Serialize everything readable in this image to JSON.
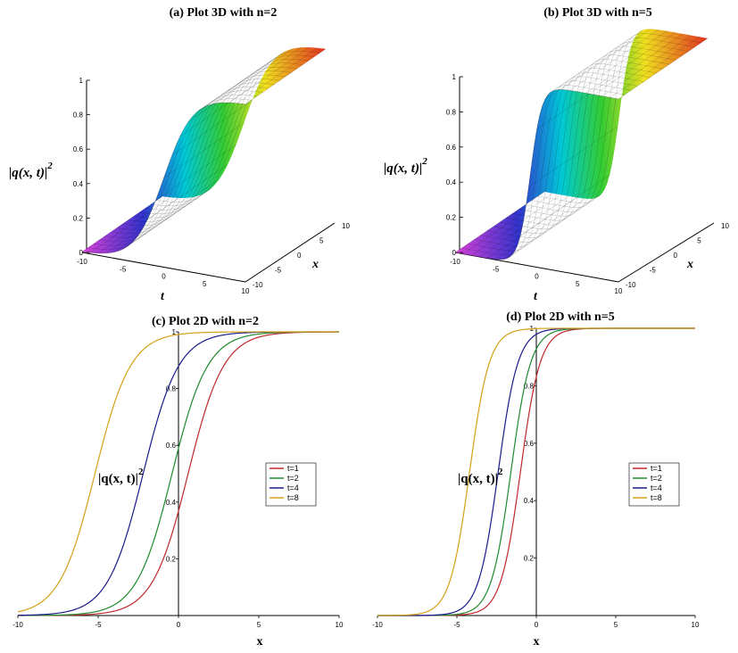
{
  "chart_data": [
    {
      "type": "surface3d",
      "title": "(a) Plot 3D with n=2",
      "n": 2,
      "zlabel": "|q(x, t)|",
      "zlabel_exponent": "2",
      "xlabel": "x",
      "tlabel": "t",
      "z_ticks": [
        "0",
        "0.2",
        "0.4",
        "0.6",
        "0.8",
        "1"
      ],
      "t_ticks": [
        "-10",
        "-5",
        "0",
        "5",
        "10"
      ],
      "x_ticks": [
        "-10",
        "-5",
        "0",
        "5",
        "10"
      ],
      "x_range": [
        -10,
        10
      ],
      "t_range": [
        -10,
        10
      ],
      "z_range": [
        0,
        1
      ]
    },
    {
      "type": "surface3d",
      "title": "(b) Plot 3D with n=5",
      "n": 5,
      "zlabel": "|q(x, t)|",
      "zlabel_exponent": "2",
      "xlabel": "x",
      "tlabel": "t",
      "z_ticks": [
        "0",
        "0.2",
        "0.4",
        "0.6",
        "0.8",
        "1"
      ],
      "t_ticks": [
        "-10",
        "-5",
        "0",
        "5",
        "10"
      ],
      "x_ticks": [
        "-10",
        "-5",
        "0",
        "5",
        "10"
      ],
      "x_range": [
        -10,
        10
      ],
      "t_range": [
        -10,
        10
      ],
      "z_range": [
        0,
        1
      ]
    },
    {
      "type": "line",
      "title": "(c) Plot 2D with n=2",
      "n": 2,
      "xlabel": "x",
      "ylabel": "|q(x, t)|",
      "ylabel_exponent": "2",
      "xlim": [
        -10,
        10
      ],
      "ylim": [
        0,
        1
      ],
      "x_ticks": [
        "-10",
        "-5",
        "0",
        "5",
        "10"
      ],
      "y_ticks": [
        "0.2",
        "0.4",
        "0.6",
        "0.8",
        "1"
      ],
      "legend_position": "right",
      "series": [
        {
          "name": "t=1",
          "color": "#c0282d",
          "midpoint": 0.6,
          "steepness": 0.9
        },
        {
          "name": "t=2",
          "color": "#1e8a2e",
          "midpoint": -0.4,
          "steepness": 0.9
        },
        {
          "name": "t=4",
          "color": "#1a1a8c",
          "midpoint": -2.2,
          "steepness": 0.9
        },
        {
          "name": "t=8",
          "color": "#d4a017",
          "midpoint": -5.2,
          "steepness": 0.9
        }
      ]
    },
    {
      "type": "line",
      "title": "(d) Plot 2D with n=5",
      "n": 5,
      "xlabel": "x",
      "ylabel": "|q(x, t)|",
      "ylabel_exponent": "2",
      "xlim": [
        -10,
        10
      ],
      "ylim": [
        0,
        1
      ],
      "x_ticks": [
        "-10",
        "-5",
        "0",
        "5",
        "10"
      ],
      "y_ticks": [
        "0.2",
        "0.4",
        "0.6",
        "0.8",
        "1"
      ],
      "legend_position": "right",
      "series": [
        {
          "name": "t=1",
          "color": "#c0282d",
          "midpoint": -1.0,
          "steepness": 1.6
        },
        {
          "name": "t=2",
          "color": "#1e8a2e",
          "midpoint": -1.6,
          "steepness": 1.6
        },
        {
          "name": "t=4",
          "color": "#1a1a8c",
          "midpoint": -2.4,
          "steepness": 1.6
        },
        {
          "name": "t=8",
          "color": "#d4a017",
          "midpoint": -4.2,
          "steepness": 1.6
        }
      ]
    }
  ]
}
